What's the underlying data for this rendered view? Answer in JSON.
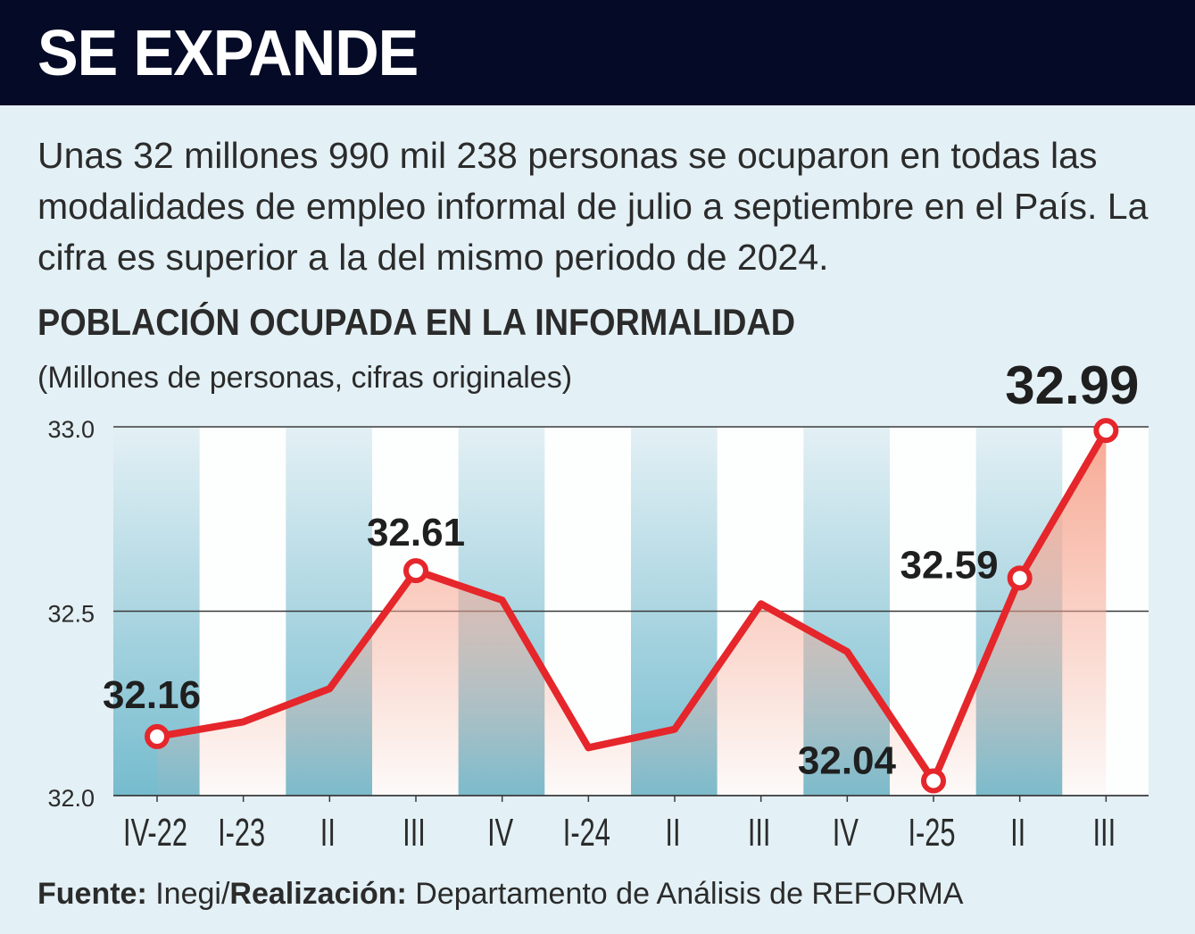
{
  "header": {
    "title": "SE EXPANDE"
  },
  "intro": {
    "text": "Unas 32 millones 990 mil 238 personas se ocuparon en todas las modalidades de empleo informal de julio a septiembre en el País. La cifra es superior a la del mismo periodo de 2024."
  },
  "footer": {
    "source_label": "Fuente:",
    "source_value": "Inegi/",
    "credit_label": "Realización:",
    "credit_value": "Departamento de Análisis de REFORMA"
  },
  "colors": {
    "header_bg": "#050a26",
    "line": "#e5262b",
    "area": "#f7a994",
    "band": "#6fb9cc",
    "background": "#e3f0f5"
  },
  "chart_data": {
    "type": "area",
    "title": "POBLACIÓN OCUPADA EN LA INFORMALIDAD",
    "subtitle": "(Millones de personas, cifras originales)",
    "categories": [
      "IV-22",
      "I-23",
      "II",
      "III",
      "IV",
      "I-24",
      "II",
      "III",
      "IV",
      "I-25",
      "II",
      "III"
    ],
    "series": [
      {
        "name": "Población ocupada en la informalidad",
        "values": [
          32.16,
          32.2,
          32.29,
          32.61,
          32.53,
          32.13,
          32.18,
          32.52,
          32.39,
          32.04,
          32.59,
          32.99
        ]
      }
    ],
    "ylim": [
      32.0,
      33.0
    ],
    "yticks": [
      "33.0",
      "32.5",
      "32.0"
    ],
    "ytick_values": [
      33.0,
      32.5,
      32.0
    ],
    "gridlines": true,
    "highlighted_indices": [
      0,
      3,
      9,
      10,
      11
    ],
    "labels": [
      "32.16",
      "32.61",
      "32.04",
      "32.59",
      "32.99"
    ]
  }
}
